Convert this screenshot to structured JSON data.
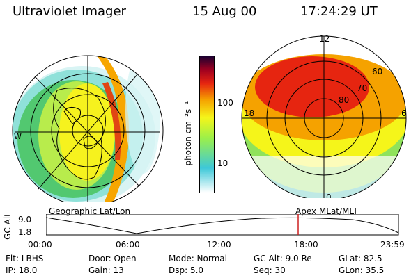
{
  "header": {
    "title": "Ultraviolet Imager",
    "date": "15 Aug 00",
    "time": "17:24:29 UT"
  },
  "left_map": {
    "caption": "Geographic Lat/Lon",
    "side_label": "W"
  },
  "right_map": {
    "caption": "Apex MLat/MLT",
    "mlt_labels": {
      "top": "12",
      "left": "18",
      "right": "6",
      "bottom": "0"
    },
    "mlat_labels": [
      "60",
      "70",
      "80"
    ]
  },
  "colorbar": {
    "unit_label": "photon cm⁻²s⁻¹",
    "ticks": [
      "100",
      "10"
    ],
    "scale": "log",
    "colors": [
      "#ffffff",
      "#3ec8d8",
      "#9cf049",
      "#f5f51a",
      "#f5a200",
      "#e62510",
      "#a00020",
      "#1a0030"
    ]
  },
  "altitude_plot": {
    "ylabel": "GC Alt",
    "yticks": [
      "9.0",
      "1.8"
    ],
    "xticks": [
      "00:00",
      "06:00",
      "12:00",
      "18:00",
      "23:59"
    ],
    "marker_color": "#cc2020"
  },
  "info": {
    "row1": [
      "Flt: LBHS",
      "Door: Open",
      "Mode: Normal",
      "GC Alt: 9.0 Re",
      "GLat: 82.5"
    ],
    "row2": [
      "IP: 18.0",
      "Gain: 13",
      "Dsp:   5.0",
      "Seq: 30",
      "GLon:  35.5"
    ]
  }
}
